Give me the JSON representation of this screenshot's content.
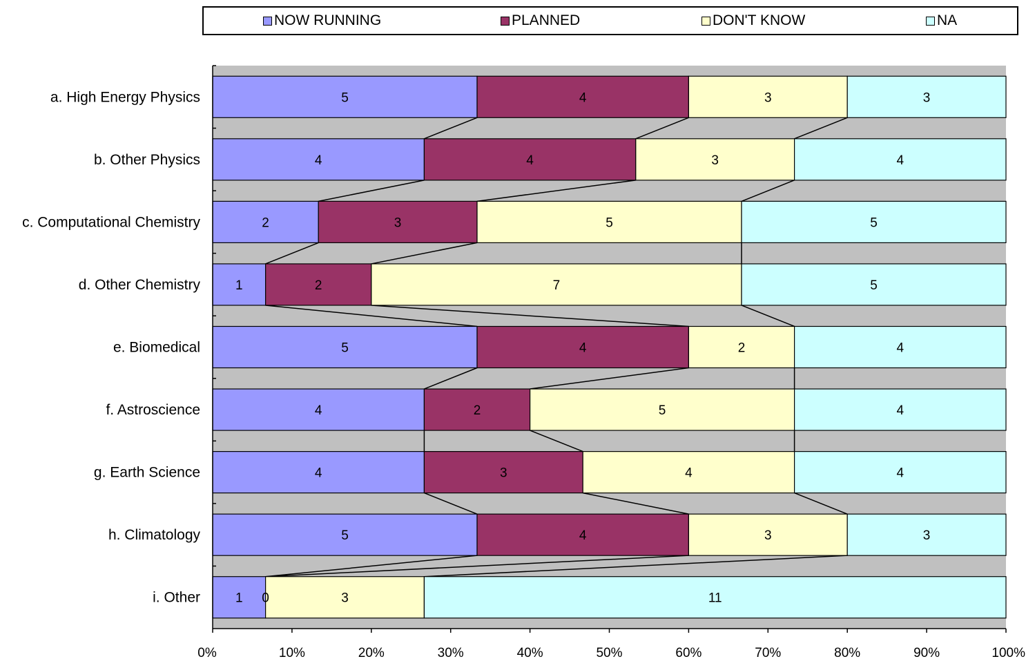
{
  "chart_data": {
    "type": "bar",
    "orientation": "horizontal",
    "stacking": "percent",
    "categories": [
      "a. High Energy Physics",
      "b. Other Physics",
      "c. Computational Chemistry",
      "d. Other Chemistry",
      "e. Biomedical",
      "f. Astroscience",
      "g. Earth Science",
      "h. Climatology",
      "i. Other"
    ],
    "series": [
      {
        "name": "NOW RUNNING",
        "color": "#9999FF",
        "values": [
          5,
          4,
          2,
          1,
          5,
          4,
          4,
          5,
          1
        ]
      },
      {
        "name": "PLANNED",
        "color": "#993366",
        "values": [
          4,
          4,
          3,
          2,
          4,
          2,
          3,
          4,
          0
        ]
      },
      {
        "name": "DON'T KNOW",
        "color": "#FFFFCC",
        "values": [
          3,
          3,
          5,
          7,
          2,
          5,
          4,
          3,
          3
        ]
      },
      {
        "name": "NA",
        "color": "#CCFFFF",
        "values": [
          3,
          4,
          5,
          5,
          4,
          4,
          4,
          3,
          11
        ]
      }
    ],
    "x_ticks": [
      "0%",
      "10%",
      "20%",
      "30%",
      "40%",
      "50%",
      "60%",
      "70%",
      "80%",
      "90%",
      "100%"
    ],
    "xlim": [
      0,
      100
    ],
    "legend_position": "top",
    "series_lines": true,
    "plot_background": "#C0C0C0",
    "title": "",
    "xlabel": "",
    "ylabel": ""
  }
}
